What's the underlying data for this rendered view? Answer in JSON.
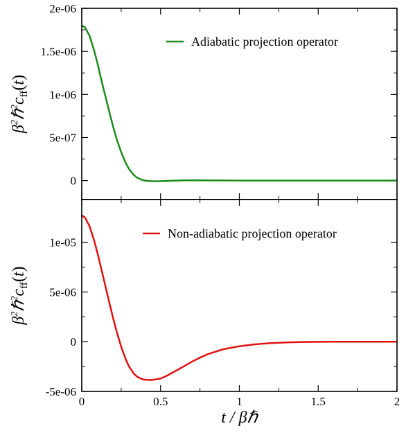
{
  "chart_data": [
    {
      "type": "line",
      "panel": "top",
      "ylabel": "β²ℏ²c_ff(t)",
      "xlim": [
        0,
        2
      ],
      "ylim": [
        -2.2e-07,
        2e-06
      ],
      "yticks": [
        0,
        5e-07,
        1e-06,
        1.5e-06,
        2e-06
      ],
      "ytick_labels": [
        "0",
        "5e-07",
        "1e-06",
        "1.5e-06",
        "2e-06"
      ],
      "xticks": [
        0,
        0.5,
        1,
        1.5,
        2
      ],
      "grid": false,
      "legend_position": "top-right",
      "series": [
        {
          "name": "Adiabatic projection operator",
          "color": "#1a8a1a",
          "x": [
            0,
            0.02,
            0.05,
            0.08,
            0.1,
            0.12,
            0.15,
            0.18,
            0.2,
            0.22,
            0.25,
            0.28,
            0.3,
            0.33,
            0.35,
            0.38,
            0.4,
            0.43,
            0.45,
            0.48,
            0.5,
            0.55,
            0.6,
            0.65,
            0.7,
            0.8,
            0.9,
            1.0,
            1.2,
            1.5,
            1.8,
            2.0
          ],
          "y": [
            1.8e-06,
            1.78e-06,
            1.68e-06,
            1.5e-06,
            1.36e-06,
            1.2e-06,
            9.8e-07,
            7.6e-07,
            6.2e-07,
            4.9e-07,
            3.3e-07,
            2e-07,
            1.35e-07,
            6.5e-08,
            3.5e-08,
            9e-09,
            0,
            -6e-09,
            -8e-09,
            -8e-09,
            -7e-09,
            -3e-09,
            0,
            2e-09,
            3e-09,
            2e-09,
            1e-09,
            0,
            0,
            0,
            0,
            0
          ]
        }
      ]
    },
    {
      "type": "line",
      "panel": "bottom",
      "xlabel": "t / βℏ",
      "ylabel": "β²ℏ²c_ff(t)",
      "xlim": [
        0,
        2
      ],
      "ylim": [
        -5e-06,
        1.43e-05
      ],
      "yticks": [
        -5e-06,
        0,
        5e-06,
        1e-05
      ],
      "ytick_labels": [
        "-5e-06",
        "0",
        "5e-06",
        "1e-05"
      ],
      "xticks": [
        0,
        0.5,
        1,
        1.5,
        2
      ],
      "xtick_labels": [
        "0",
        "0.5",
        "1",
        "1.5",
        "2"
      ],
      "grid": false,
      "legend_position": "top-right",
      "series": [
        {
          "name": "Non-adiabatic projection operator",
          "color": "#e01010",
          "x": [
            0,
            0.02,
            0.05,
            0.08,
            0.1,
            0.12,
            0.15,
            0.18,
            0.2,
            0.22,
            0.25,
            0.28,
            0.3,
            0.33,
            0.35,
            0.38,
            0.4,
            0.43,
            0.45,
            0.48,
            0.5,
            0.53,
            0.56,
            0.6,
            0.65,
            0.7,
            0.75,
            0.8,
            0.9,
            1.0,
            1.1,
            1.2,
            1.3,
            1.4,
            1.5,
            1.6,
            1.8,
            2.0
          ],
          "y": [
            1.27e-05,
            1.25e-05,
            1.16e-05,
            1.01e-05,
            8.9e-06,
            7.6e-06,
            5.6e-06,
            3.6e-06,
            2.3e-06,
            1.1e-06,
            -5e-07,
            -1.8e-06,
            -2.5e-06,
            -3.2e-06,
            -3.5e-06,
            -3.75e-06,
            -3.82e-06,
            -3.85e-06,
            -3.83e-06,
            -3.76e-06,
            -3.7e-06,
            -3.5e-06,
            -3.25e-06,
            -2.9e-06,
            -2.45e-06,
            -2e-06,
            -1.6e-06,
            -1.25e-06,
            -7.5e-07,
            -4.5e-07,
            -2.6e-07,
            -1.4e-07,
            -7e-08,
            -3e-08,
            -1e-08,
            0,
            0,
            0
          ]
        }
      ]
    }
  ]
}
